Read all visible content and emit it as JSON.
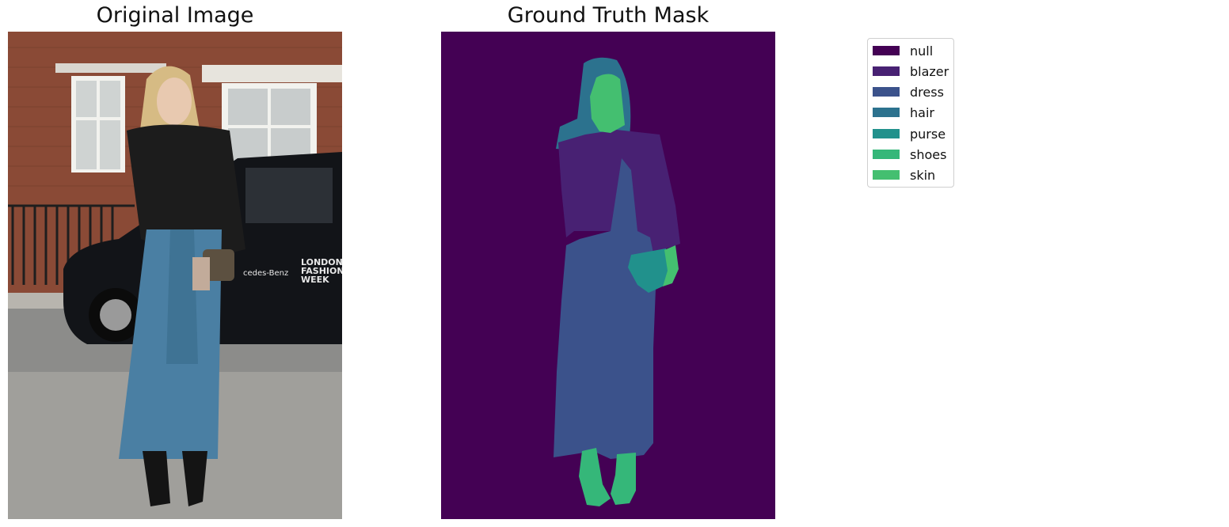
{
  "titles": {
    "left": "Original Image",
    "right": "Ground Truth Mask"
  },
  "photo": {
    "sign_text": [
      "LONDON",
      "FASHION",
      "WEEK"
    ],
    "van_brand": "cedes-Benz"
  },
  "legend": {
    "items": [
      {
        "label": "null",
        "color": "#440154"
      },
      {
        "label": "blazer",
        "color": "#482173"
      },
      {
        "label": "dress",
        "color": "#3b528b"
      },
      {
        "label": "hair",
        "color": "#2c728e"
      },
      {
        "label": "purse",
        "color": "#21918c"
      },
      {
        "label": "shoes",
        "color": "#35b779"
      },
      {
        "label": "skin",
        "color": "#44bf70"
      }
    ]
  }
}
